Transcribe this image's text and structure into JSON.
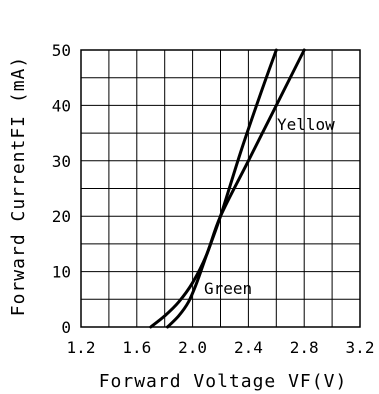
{
  "chart_data": {
    "type": "line",
    "title": "",
    "xlabel": "Forward Voltage VF(V)",
    "ylabel": "Forward CurrentFI (mA)",
    "xlim": [
      1.2,
      3.2
    ],
    "ylim": [
      0,
      50
    ],
    "xticks": [
      "1.2",
      "1.6",
      "2.0",
      "2.4",
      "2.8",
      "3.2"
    ],
    "yticks": [
      "0",
      "10",
      "20",
      "30",
      "40",
      "50"
    ],
    "grid": true,
    "series": [
      {
        "name": "Yellow",
        "x": [
          1.7,
          1.8,
          1.9,
          2.0,
          2.1,
          2.2,
          2.4,
          2.6,
          2.8
        ],
        "y": [
          0,
          2,
          4.5,
          8,
          13,
          20,
          30,
          40,
          50
        ]
      },
      {
        "name": "Green",
        "x": [
          1.82,
          1.9,
          1.97,
          2.03,
          2.1,
          2.2,
          2.35,
          2.5,
          2.6
        ],
        "y": [
          0,
          2,
          4.5,
          8,
          13,
          20,
          32,
          43,
          50
        ]
      }
    ]
  }
}
